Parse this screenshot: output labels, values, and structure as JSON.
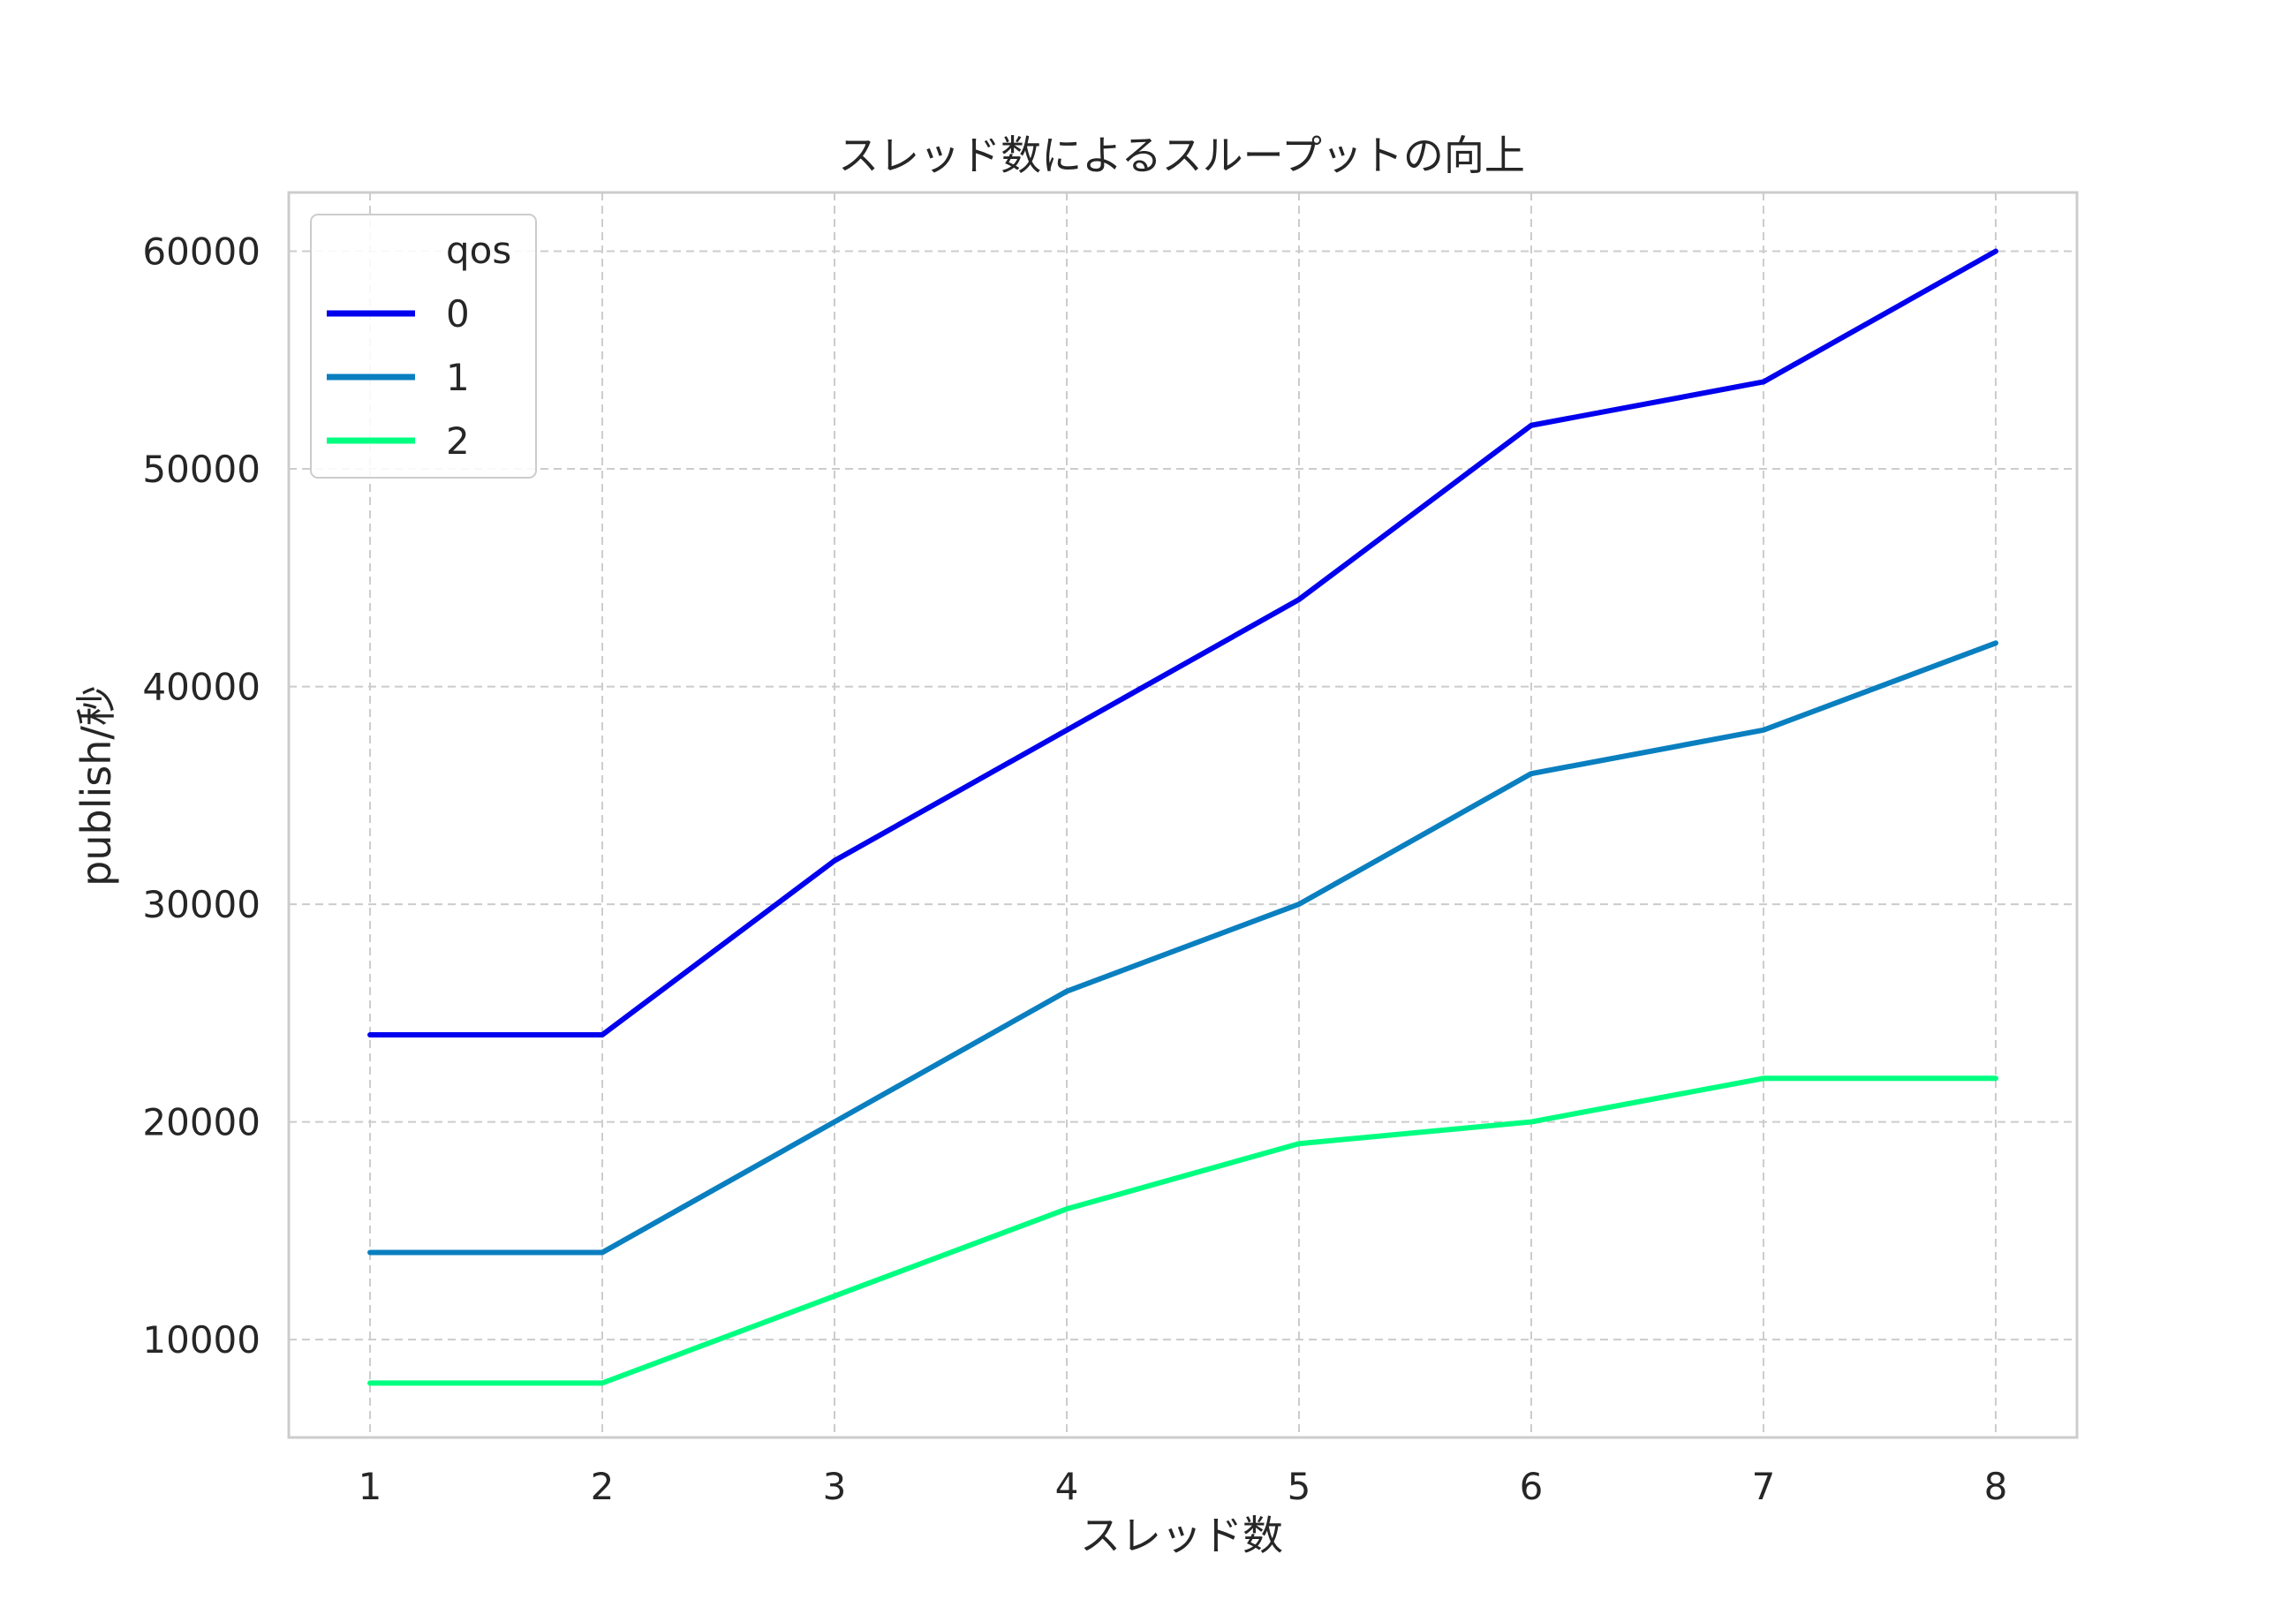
{
  "chart_data": {
    "type": "line",
    "title": "スレッド数によるスループットの向上",
    "xlabel": "スレッド数",
    "ylabel": "publish/秒",
    "x": [
      1,
      2,
      3,
      4,
      5,
      6,
      7,
      8
    ],
    "xticks": [
      "1",
      "2",
      "3",
      "4",
      "5",
      "6",
      "7",
      "8"
    ],
    "yticks": [
      "10000",
      "20000",
      "30000",
      "40000",
      "50000",
      "60000"
    ],
    "xlim": [
      0.65,
      8.35
    ],
    "ylim": [
      5500,
      62700
    ],
    "grid": true,
    "legend": {
      "title": "qos",
      "placement": "top-left"
    },
    "series": [
      {
        "name": "0",
        "color": "#0000ee",
        "values": [
          24000,
          24000,
          32000,
          38000,
          44000,
          52000,
          54000,
          60000
        ]
      },
      {
        "name": "1",
        "color": "#0a7fc0",
        "values": [
          14000,
          14000,
          20000,
          26000,
          30000,
          36000,
          38000,
          42000
        ]
      },
      {
        "name": "2",
        "color": "#00ff80",
        "values": [
          8000,
          8000,
          12000,
          16000,
          19000,
          20000,
          22000,
          22000
        ]
      }
    ]
  }
}
